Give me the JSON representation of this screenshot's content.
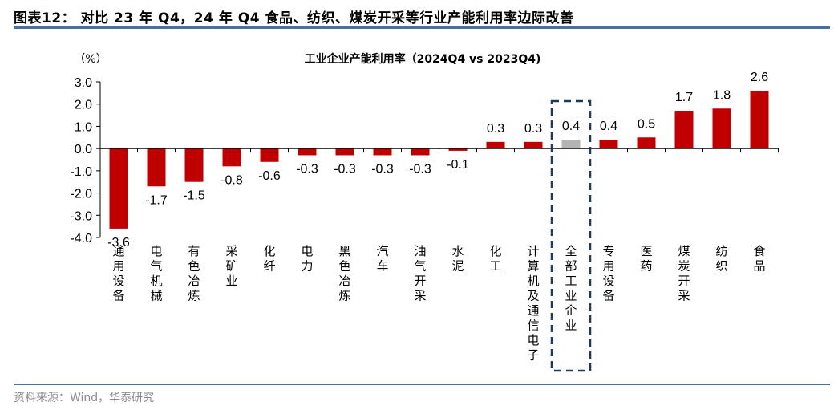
{
  "figure": {
    "title": "图表12： 对比 23 年 Q4，24 年 Q4 食品、纺织、煤炭开采等行业产能利用率边际改善",
    "source": "资料来源：Wind，华泰研究"
  },
  "colors": {
    "bar": "#c00000",
    "highlight_bar": "#b4b4b4",
    "highlight_box": "#1f3a56",
    "rule": "#4a6fa5",
    "axis": "#000000"
  },
  "chart_data": {
    "type": "bar",
    "title": "工业企业产能利用率（2024Q4 vs 2023Q4)",
    "ylabel": "（%）",
    "xlabel": "",
    "ylim": [
      -4.0,
      3.0
    ],
    "yticks": [
      "3.0",
      "2.0",
      "1.0",
      "0.0",
      "-1.0",
      "-2.0",
      "-3.0",
      "-4.0"
    ],
    "grid": false,
    "legend": null,
    "categories": [
      "通用设备",
      "电气机械",
      "有色冶炼",
      "采矿业",
      "化纤",
      "电力",
      "黑色冶炼",
      "汽车",
      "油气开采",
      "水泥",
      "化工",
      "计算机及通信电子",
      "全部工业企业",
      "专用设备",
      "医药",
      "煤炭开采",
      "纺织",
      "食品"
    ],
    "values": [
      -3.6,
      -1.7,
      -1.5,
      -0.8,
      -0.6,
      -0.3,
      -0.3,
      -0.3,
      -0.3,
      -0.1,
      0.3,
      0.3,
      0.4,
      0.4,
      0.5,
      1.7,
      1.8,
      2.6
    ],
    "labels": [
      "-3.6",
      "-1.7",
      "-1.5",
      "-0.8",
      "-0.6",
      "-0.3",
      "-0.3",
      "-0.3",
      "-0.3",
      "-0.1",
      "0.3",
      "0.3",
      "0.4",
      "0.4",
      "0.5",
      "1.7",
      "1.8",
      "2.6"
    ],
    "highlight_index": 12,
    "annotations": [
      "dashed box around 全部工业企业"
    ]
  }
}
